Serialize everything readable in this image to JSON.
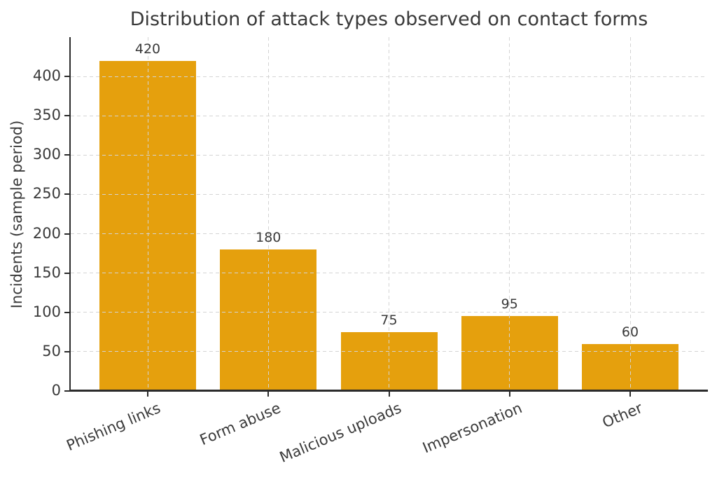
{
  "chart_data": {
    "type": "bar",
    "title": "Distribution of attack types observed on contact forms",
    "categories": [
      "Phishing links",
      "Form abuse",
      "Malicious uploads",
      "Impersonation",
      "Other"
    ],
    "values": [
      420,
      180,
      75,
      95,
      60
    ],
    "value_labels": [
      "420",
      "180",
      "75",
      "95",
      "60"
    ],
    "xlabel": "",
    "ylabel": "Incidents (sample period)",
    "yticks": [
      0,
      50,
      100,
      150,
      200,
      250,
      300,
      350,
      400
    ],
    "ylim": [
      0,
      450
    ],
    "bar_color": "#E5A00D",
    "grid": {
      "style": "dashed",
      "color": "#d4d4d4",
      "axes": "both",
      "on_top_of_bars": true
    },
    "text_color": "#3a3a3a",
    "spine_color": "#2b2b2b",
    "background": "#ffffff",
    "legend": "none",
    "x_tick_rotation_deg": -23
  }
}
